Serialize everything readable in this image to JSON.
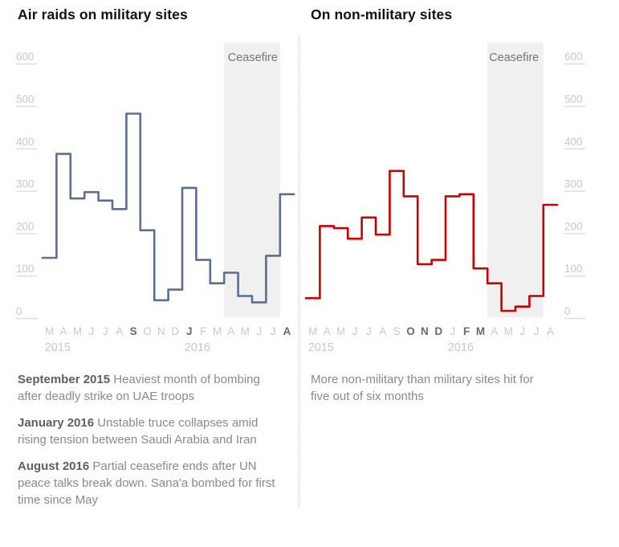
{
  "chart_data": [
    {
      "type": "line",
      "step": true,
      "title": "Air raids on military sites",
      "x": [
        "Mar 2015",
        "Apr 2015",
        "May 2015",
        "Jun 2015",
        "Jul 2015",
        "Aug 2015",
        "Sep 2015",
        "Oct 2015",
        "Nov 2015",
        "Dec 2015",
        "Jan 2016",
        "Feb 2016",
        "Mar 2016",
        "Apr 2016",
        "May 2016",
        "Jun 2016",
        "Jul 2016",
        "Aug 2016"
      ],
      "values": [
        125,
        370,
        265,
        280,
        260,
        240,
        465,
        190,
        25,
        50,
        290,
        120,
        65,
        90,
        35,
        20,
        130,
        275
      ],
      "month_labels": [
        "M",
        "A",
        "M",
        "J",
        "J",
        "A",
        "S",
        "O",
        "N",
        "D",
        "J",
        "F",
        "M",
        "A",
        "M",
        "J",
        "J",
        "A"
      ],
      "bold_month_indices": [
        6,
        10,
        17
      ],
      "year_labels": [
        {
          "text": "2015",
          "month_index": 0
        },
        {
          "text": "2016",
          "month_index": 10
        }
      ],
      "yticks": [
        0,
        100,
        200,
        300,
        400,
        500,
        600
      ],
      "ylim": [
        0,
        600
      ],
      "axis_side": "left",
      "line_color": "#5e6e8e",
      "annotation_region": {
        "label": "Ceasefire",
        "start_month_index": 13,
        "end_month_index": 16,
        "fill": "#f0f0f0",
        "label_color": "#767676"
      },
      "grid": false,
      "legend": "none"
    },
    {
      "type": "line",
      "step": true,
      "title": "On non-military sites",
      "x": [
        "Mar 2015",
        "Apr 2015",
        "May 2015",
        "Jun 2015",
        "Jul 2015",
        "Aug 2015",
        "Sep 2015",
        "Oct 2015",
        "Nov 2015",
        "Dec 2015",
        "Jan 2016",
        "Feb 2016",
        "Mar 2016",
        "Apr 2016",
        "May 2016",
        "Jun 2016",
        "Jul 2016",
        "Aug 2016"
      ],
      "values": [
        30,
        200,
        195,
        170,
        220,
        180,
        330,
        270,
        110,
        120,
        270,
        275,
        100,
        65,
        0,
        10,
        35,
        250
      ],
      "month_labels": [
        "M",
        "A",
        "M",
        "J",
        "J",
        "A",
        "S",
        "O",
        "N",
        "D",
        "J",
        "F",
        "M",
        "A",
        "M",
        "J",
        "J",
        "A"
      ],
      "bold_month_indices": [
        7,
        8,
        9,
        11,
        12
      ],
      "year_labels": [
        {
          "text": "2015",
          "month_index": 0
        },
        {
          "text": "2016",
          "month_index": 10
        }
      ],
      "yticks": [
        0,
        100,
        200,
        300,
        400,
        500,
        600
      ],
      "ylim": [
        0,
        600
      ],
      "axis_side": "right",
      "line_color": "#c70000",
      "annotation_region": {
        "label": "Ceasefire",
        "start_month_index": 13,
        "end_month_index": 16,
        "fill": "#f0f0f0",
        "label_color": "#767676"
      },
      "grid": false,
      "legend": "none"
    }
  ],
  "annotations": {
    "left": [
      {
        "lead": "September 2015",
        "text": " Heaviest month of bombing after deadly strike on UAE troops"
      },
      {
        "lead": "January 2016",
        "text": " Unstable truce collapses amid rising tension between Saudi Arabia and Iran"
      },
      {
        "lead": "August 2016",
        "text": " Partial ceasefire ends after UN peace talks break down. Sana'a bombed for first time since May"
      }
    ],
    "right": [
      {
        "lead": "",
        "text": "More non-military than military sites hit for five out of six months"
      }
    ]
  },
  "colors": {
    "military_line": "#5e6e8e",
    "non_military_line": "#c70000",
    "ceasefire_band": "#f0f0f0",
    "axis_text": "#c9c9c9",
    "axis_tick": "#dcdcdc",
    "bold_month": "#6a6a6a",
    "ceasefire_text": "#767676",
    "title_text": "#121212",
    "note_text": "#8a8a8a"
  }
}
